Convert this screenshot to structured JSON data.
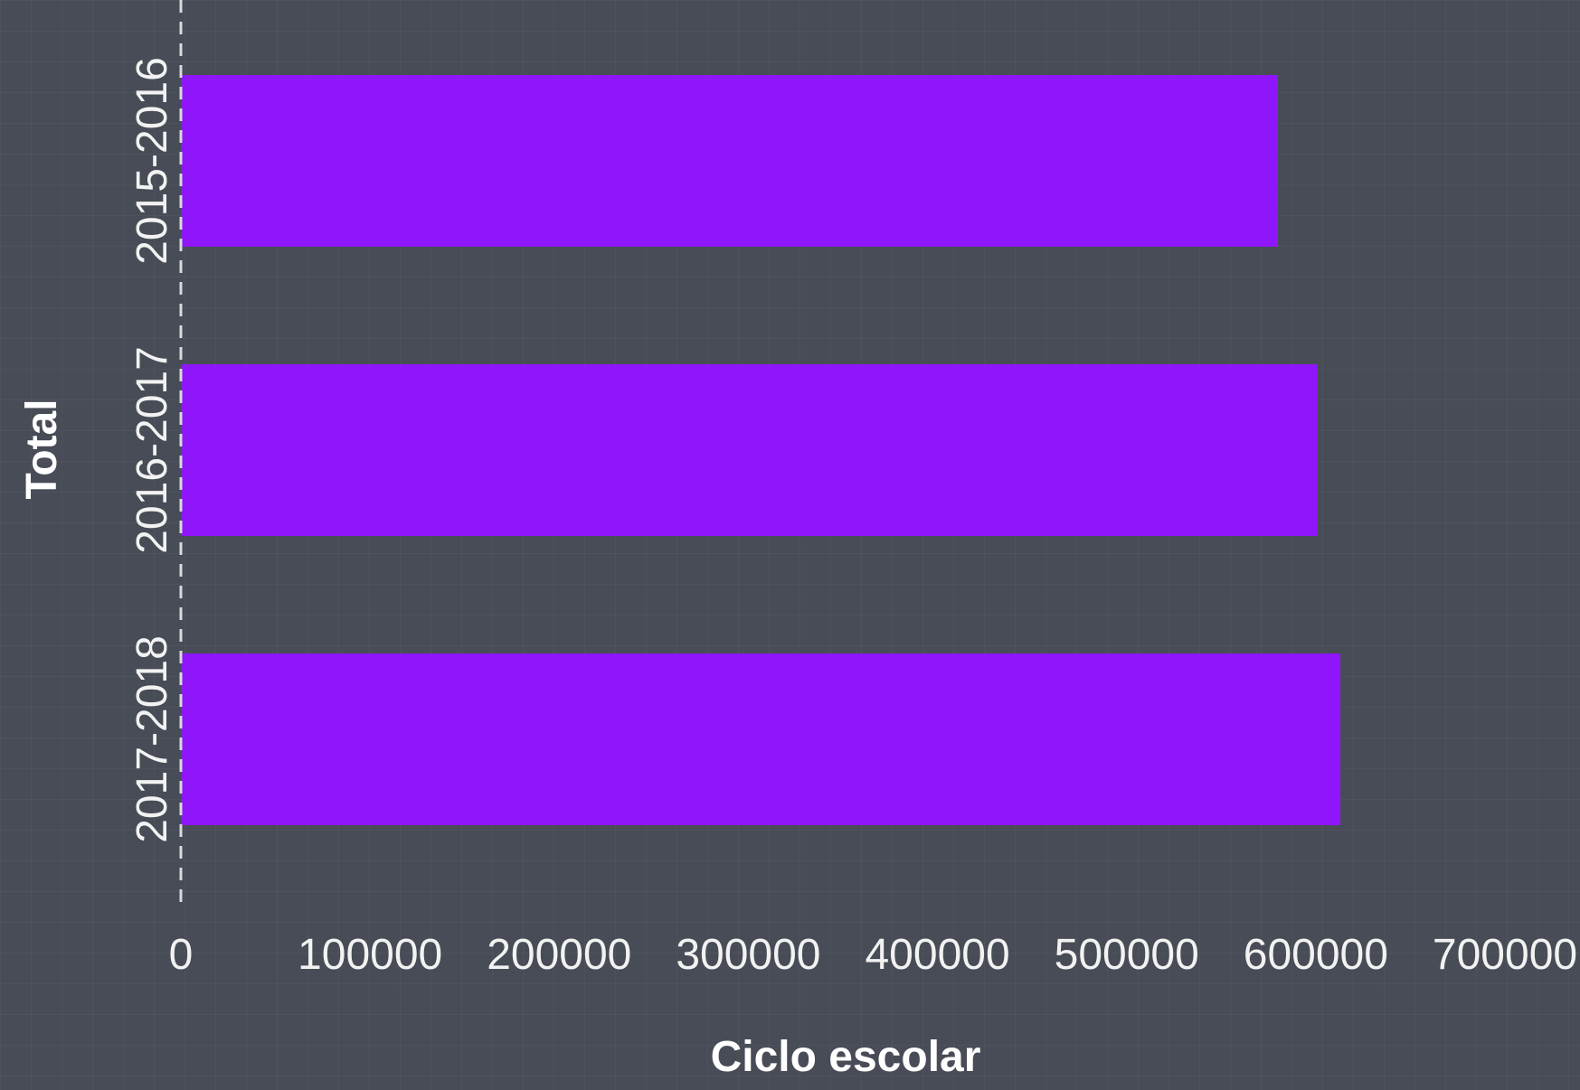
{
  "chart_data": {
    "type": "bar",
    "orientation": "horizontal",
    "categories": [
      "2015-2016",
      "2016-2017",
      "2017-2018"
    ],
    "values": [
      580000,
      601000,
      613000
    ],
    "xlabel": "Ciclo escolar",
    "ylabel": "Total",
    "xlim": [
      0,
      700000
    ],
    "xticks": [
      "0",
      "100000",
      "200000",
      "300000",
      "400000",
      "500000",
      "600000",
      "700000"
    ],
    "xtick_values": [
      0,
      100000,
      200000,
      300000,
      400000,
      500000,
      600000,
      700000
    ],
    "grid": false,
    "zero_line": "dashed",
    "colors": {
      "bar": "#8f16fa",
      "background": "#474c56",
      "text": "#f2f2f2",
      "zero_line": "#d9d9d9"
    }
  }
}
